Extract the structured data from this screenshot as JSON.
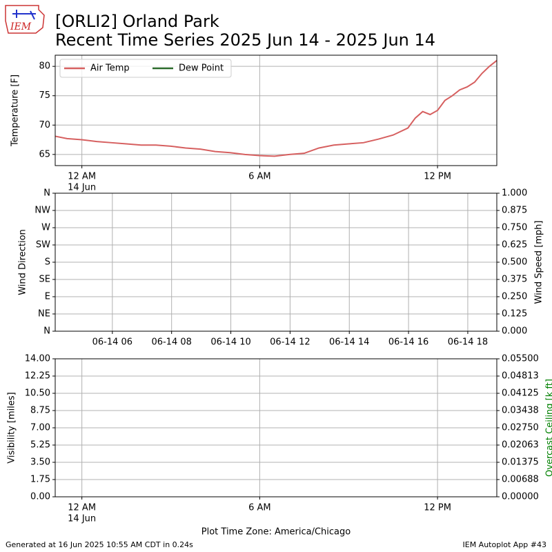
{
  "logo_text": "IEM",
  "footer": {
    "left": "Generated at 16 Jun 2025 10:55 AM CDT in 0.24s",
    "right": "IEM Autoplot App #43"
  },
  "chart_data": [
    {
      "type": "line",
      "title": "[ORLI2] Orland Park",
      "subtitle": "Recent Time Series 2025 Jun 14 - 2025 Jun 14",
      "ylabel": "Temperature [F]",
      "grid": true,
      "legend": "upper left",
      "x": [
        -0.9,
        -0.5,
        0,
        0.5,
        1,
        1.5,
        2,
        2.5,
        3,
        3.5,
        4,
        4.5,
        5,
        5.5,
        6,
        6.5,
        7,
        7.5,
        8,
        8.5,
        9,
        9.5,
        10,
        10.5,
        11,
        11.25,
        11.5,
        11.75,
        12,
        12.25,
        12.5,
        12.75,
        13,
        13.25,
        13.5,
        13.75,
        14.0
      ],
      "series": [
        {
          "name": "Air Temp",
          "color": "#d65f5f",
          "values": [
            68.1,
            67.7,
            67.5,
            67.2,
            67.0,
            66.8,
            66.6,
            66.6,
            66.4,
            66.1,
            65.9,
            65.5,
            65.3,
            65.0,
            64.8,
            64.7,
            65.0,
            65.2,
            66.1,
            66.6,
            66.8,
            67.0,
            67.6,
            68.3,
            69.5,
            71.2,
            72.3,
            71.8,
            72.5,
            74.2,
            75.0,
            76.0,
            76.5,
            77.3,
            78.8,
            80.0,
            81.0
          ]
        },
        {
          "name": "Dew Point",
          "color": "#2a6a2a",
          "values": [
            null,
            null,
            null,
            null,
            null,
            null,
            null,
            null,
            null,
            null,
            null,
            null,
            null,
            null,
            null,
            null,
            null,
            null,
            null,
            null,
            null,
            null,
            null,
            null,
            null,
            null,
            null,
            null,
            null,
            null,
            null,
            null,
            null,
            null,
            null,
            null,
            null
          ]
        }
      ],
      "xlim": [
        -0.9,
        14.0
      ],
      "xticks": [
        {
          "value": 0,
          "label": "12 AM"
        },
        {
          "value": 6,
          "label": "6 AM"
        },
        {
          "value": 12,
          "label": "12 PM"
        }
      ],
      "x_date_label": "14 Jun",
      "ylim": [
        63.1,
        81.9
      ],
      "yticks": [
        65,
        70,
        75,
        80
      ]
    },
    {
      "type": "line",
      "ylabel": "Wind Direction",
      "y2label": "Wind Speed [mph]",
      "grid": true,
      "xlim": [
        4.07,
        18.98
      ],
      "xticks": [
        {
          "value": 6,
          "label": "06-14 06"
        },
        {
          "value": 8,
          "label": "06-14 08"
        },
        {
          "value": 10,
          "label": "06-14 10"
        },
        {
          "value": 12,
          "label": "06-14 12"
        },
        {
          "value": 14,
          "label": "06-14 14"
        },
        {
          "value": 16,
          "label": "06-14 16"
        },
        {
          "value": 18,
          "label": "06-14 18"
        }
      ],
      "ylim": [
        0,
        360
      ],
      "yticks": [
        {
          "value": 0,
          "label": "N"
        },
        {
          "value": 45,
          "label": "NE"
        },
        {
          "value": 90,
          "label": "E"
        },
        {
          "value": 135,
          "label": "SE"
        },
        {
          "value": 180,
          "label": "S"
        },
        {
          "value": 225,
          "label": "SW"
        },
        {
          "value": 270,
          "label": "W"
        },
        {
          "value": 315,
          "label": "NW"
        },
        {
          "value": 360,
          "label": "N"
        }
      ],
      "y2lim": [
        0,
        1
      ],
      "y2ticks": [
        {
          "value": 0,
          "label": "0.000"
        },
        {
          "value": 0.125,
          "label": "0.125"
        },
        {
          "value": 0.25,
          "label": "0.250"
        },
        {
          "value": 0.375,
          "label": "0.375"
        },
        {
          "value": 0.5,
          "label": "0.500"
        },
        {
          "value": 0.625,
          "label": "0.625"
        },
        {
          "value": 0.75,
          "label": "0.750"
        },
        {
          "value": 0.875,
          "label": "0.875"
        },
        {
          "value": 1,
          "label": "1.000"
        }
      ]
    },
    {
      "type": "line",
      "ylabel": "Visibility [miles]",
      "y2label": "Overcast Ceiling [k ft]",
      "y2label_color": "#008000",
      "xlabel": "Plot Time Zone: America/Chicago",
      "grid": true,
      "xlim": [
        -0.9,
        14.0
      ],
      "xticks": [
        {
          "value": 0,
          "label": "12 AM"
        },
        {
          "value": 6,
          "label": "6 AM"
        },
        {
          "value": 12,
          "label": "12 PM"
        }
      ],
      "x_date_label": "14 Jun",
      "ylim": [
        0,
        14
      ],
      "yticks": [
        {
          "value": 0,
          "label": "0.00"
        },
        {
          "value": 1.75,
          "label": "1.75"
        },
        {
          "value": 3.5,
          "label": "3.50"
        },
        {
          "value": 5.25,
          "label": "5.25"
        },
        {
          "value": 7,
          "label": "7.00"
        },
        {
          "value": 8.75,
          "label": "8.75"
        },
        {
          "value": 10.5,
          "label": "10.50"
        },
        {
          "value": 12.25,
          "label": "12.25"
        },
        {
          "value": 14,
          "label": "14.00"
        }
      ],
      "y2lim": [
        0,
        0.055
      ],
      "y2ticks": [
        {
          "value": 0,
          "label": "0.00000"
        },
        {
          "value": 0.006875,
          "label": "0.00688"
        },
        {
          "value": 0.01375,
          "label": "0.01375"
        },
        {
          "value": 0.020625,
          "label": "0.02063"
        },
        {
          "value": 0.0275,
          "label": "0.02750"
        },
        {
          "value": 0.034375,
          "label": "0.03438"
        },
        {
          "value": 0.04125,
          "label": "0.04125"
        },
        {
          "value": 0.048125,
          "label": "0.04813"
        },
        {
          "value": 0.055,
          "label": "0.05500"
        }
      ]
    }
  ]
}
